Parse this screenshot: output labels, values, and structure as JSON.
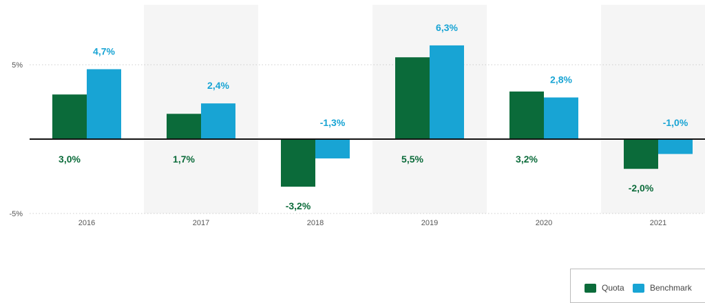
{
  "chart_data": {
    "type": "bar",
    "categories": [
      "2016",
      "2017",
      "2018",
      "2019",
      "2020",
      "2021"
    ],
    "series": [
      {
        "name": "Quota",
        "values": [
          3.0,
          1.7,
          -3.2,
          5.5,
          3.2,
          -2.0
        ],
        "labels": [
          "3,0%",
          "1,7%",
          "-3,2%",
          "5,5%",
          "3,2%",
          "-2,0%"
        ],
        "color": "#0b6b3a"
      },
      {
        "name": "Benchmark",
        "values": [
          4.7,
          2.4,
          -1.3,
          6.3,
          2.8,
          -1.0
        ],
        "labels": [
          "4,7%",
          "2,4%",
          "-1,3%",
          "6,3%",
          "2,8%",
          "-1,0%"
        ],
        "color": "#18a4d4"
      }
    ],
    "yticks": [
      {
        "value": 5,
        "label": "5%"
      },
      {
        "value": -5,
        "label": "-5%"
      }
    ],
    "ylim": [
      -5,
      8
    ],
    "grid": "dotted at ±5%",
    "legend": "bottom-right",
    "xlabel": "",
    "ylabel": "",
    "shaded_columns": [
      "2017",
      "2019",
      "2021"
    ]
  }
}
